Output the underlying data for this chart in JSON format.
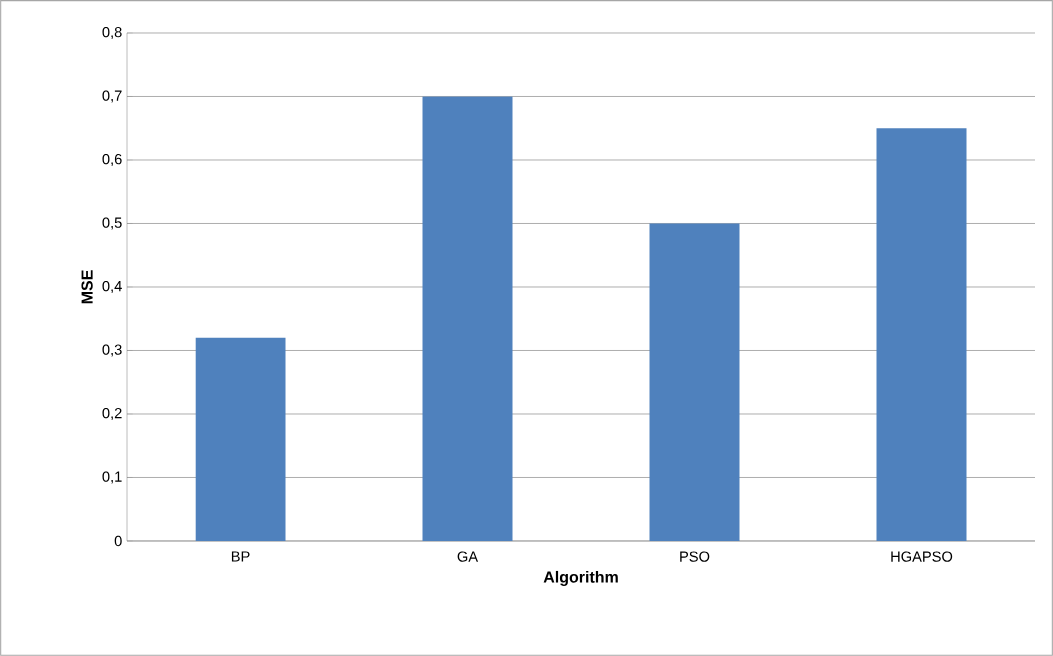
{
  "chart_data": {
    "type": "bar",
    "xlabel": "Algorithm",
    "ylabel": "MSE",
    "categories": [
      "BP",
      "GA",
      "PSO",
      "HGAPSO"
    ],
    "values": [
      0.32,
      0.7,
      0.5,
      0.65
    ],
    "color": "#4f81bd",
    "ylim": [
      0,
      0.8
    ],
    "yticks": [
      0,
      {
        "value": 0.1,
        "label": "0,1"
      },
      {
        "value": 0.2,
        "label": "0,2"
      },
      {
        "value": 0.3,
        "label": "0,3"
      },
      {
        "value": 0.4,
        "label": "0,4"
      },
      {
        "value": 0.5,
        "label": "0,5"
      },
      {
        "value": 0.6,
        "label": "0,6"
      },
      {
        "value": 0.7,
        "label": "0,7"
      },
      {
        "value": 0.8,
        "label": "0,8"
      }
    ],
    "grid": "y"
  }
}
